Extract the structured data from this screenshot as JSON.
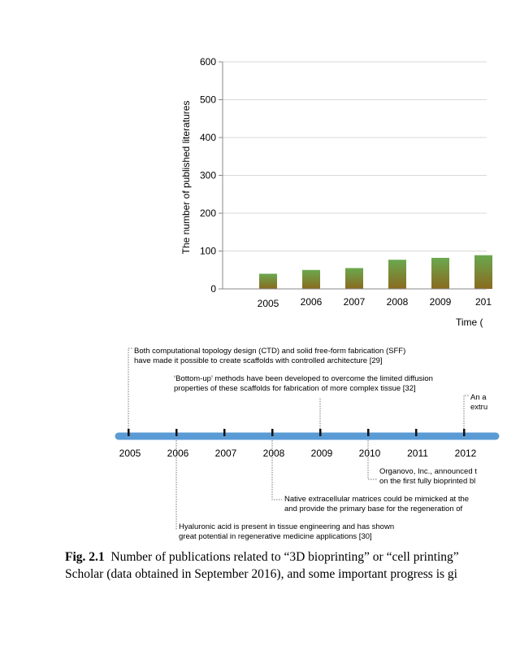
{
  "chart_data": [
    {
      "type": "bar",
      "title": "",
      "ylabel": "The number of published literatures",
      "xlabel": "Time (",
      "ylim": [
        0,
        600
      ],
      "yticks": [
        0,
        100,
        200,
        300,
        400,
        500,
        600
      ],
      "categories": [
        "2005",
        "2006",
        "2007",
        "2008",
        "2009",
        "201"
      ],
      "values": [
        40,
        50,
        55,
        77,
        82,
        89
      ],
      "grid": true,
      "colors": {
        "bar_top": "#6aa84f",
        "bar_bottom": "#8a6a1e"
      }
    },
    {
      "type": "timeline",
      "years": [
        "2005",
        "2006",
        "2007",
        "2008",
        "2009",
        "2010",
        "2011",
        "2012"
      ],
      "axis_color": "#5b9bd5",
      "annotations": [
        {
          "year": "2005",
          "lines": [
            "Both computational topology design (CTD) and solid free-form fabrication (SFF)",
            "have made it possible to create scaffolds with controlled architecture [29]"
          ]
        },
        {
          "year": "2009",
          "lines": [
            "‘Bottom-up’ methods have been developed to overcome the limited diffusion",
            "properties of these scaffolds for fabrication of more complex tissue [32]"
          ]
        },
        {
          "year": "2012",
          "lines": [
            "An a",
            "extru"
          ]
        },
        {
          "year": "2010",
          "lines": [
            "Organovo, Inc., announced t",
            "on the first fully bioprinted bl"
          ]
        },
        {
          "year": "2008",
          "lines": [
            "Native extracellular matrices could be mimicked at the",
            "and provide the primary base for the regeneration of"
          ]
        },
        {
          "year": "2006",
          "lines": [
            "Hyaluronic acid is present in tissue engineering and has shown",
            "great potential in regenerative medicine applications [30]"
          ]
        }
      ]
    }
  ],
  "caption": {
    "label": "Fig. 2.1",
    "line1": "Number of publications related to “3D bioprinting” or “cell printing”",
    "line2": "Scholar (data obtained in September 2016), and some important progress is gi"
  }
}
